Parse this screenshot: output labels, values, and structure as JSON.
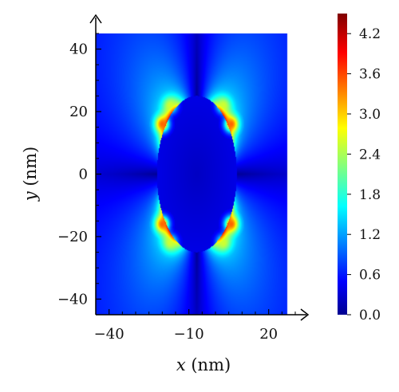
{
  "chart_data": {
    "type": "heatmap",
    "title": "",
    "xlabel": {
      "var": "x",
      "unit": " (nm)"
    },
    "ylabel": {
      "var": "y",
      "unit": " (nm)"
    },
    "xlim": [
      -45,
      30
    ],
    "ylim": [
      -45,
      45
    ],
    "xticks": [
      -40,
      -10,
      20
    ],
    "yticks": [
      -40,
      -20,
      0,
      20,
      40
    ],
    "x_tick_labels": [
      "−40",
      "−10",
      "20"
    ],
    "y_tick_labels": [
      "−40",
      "−20",
      "0",
      "20",
      "40"
    ],
    "field_region": {
      "x": [
        -45,
        27
      ],
      "y": [
        -45,
        45
      ]
    },
    "particle": {
      "shape": "ellipse",
      "center": [
        -7,
        0
      ],
      "semi_axes": [
        15,
        25
      ],
      "interior_value": 0.3
    },
    "hotspots": [
      {
        "x": -20,
        "y": 16,
        "value": 3.5
      },
      {
        "x": 6,
        "y": 16,
        "value": 3.5
      },
      {
        "x": -20,
        "y": -16,
        "value": 3.5
      },
      {
        "x": 6,
        "y": -16,
        "value": 3.5
      },
      {
        "x": -17,
        "y": 22,
        "value": 2.6
      },
      {
        "x": 3,
        "y": 22,
        "value": 2.6
      },
      {
        "x": -17,
        "y": -22,
        "value": 2.6
      },
      {
        "x": 3,
        "y": -22,
        "value": 2.6
      }
    ],
    "dark_lobes_directions": [
      "up",
      "down",
      "left",
      "right"
    ],
    "colorbar": {
      "min": 0.0,
      "max": 4.5,
      "ticks": [
        0.0,
        0.6,
        1.2,
        1.8,
        2.4,
        3.0,
        3.6,
        4.2
      ],
      "tick_labels": [
        "0.0",
        "0.6",
        "1.2",
        "1.8",
        "2.4",
        "3.0",
        "3.6",
        "4.2"
      ],
      "colormap": "jet"
    }
  }
}
